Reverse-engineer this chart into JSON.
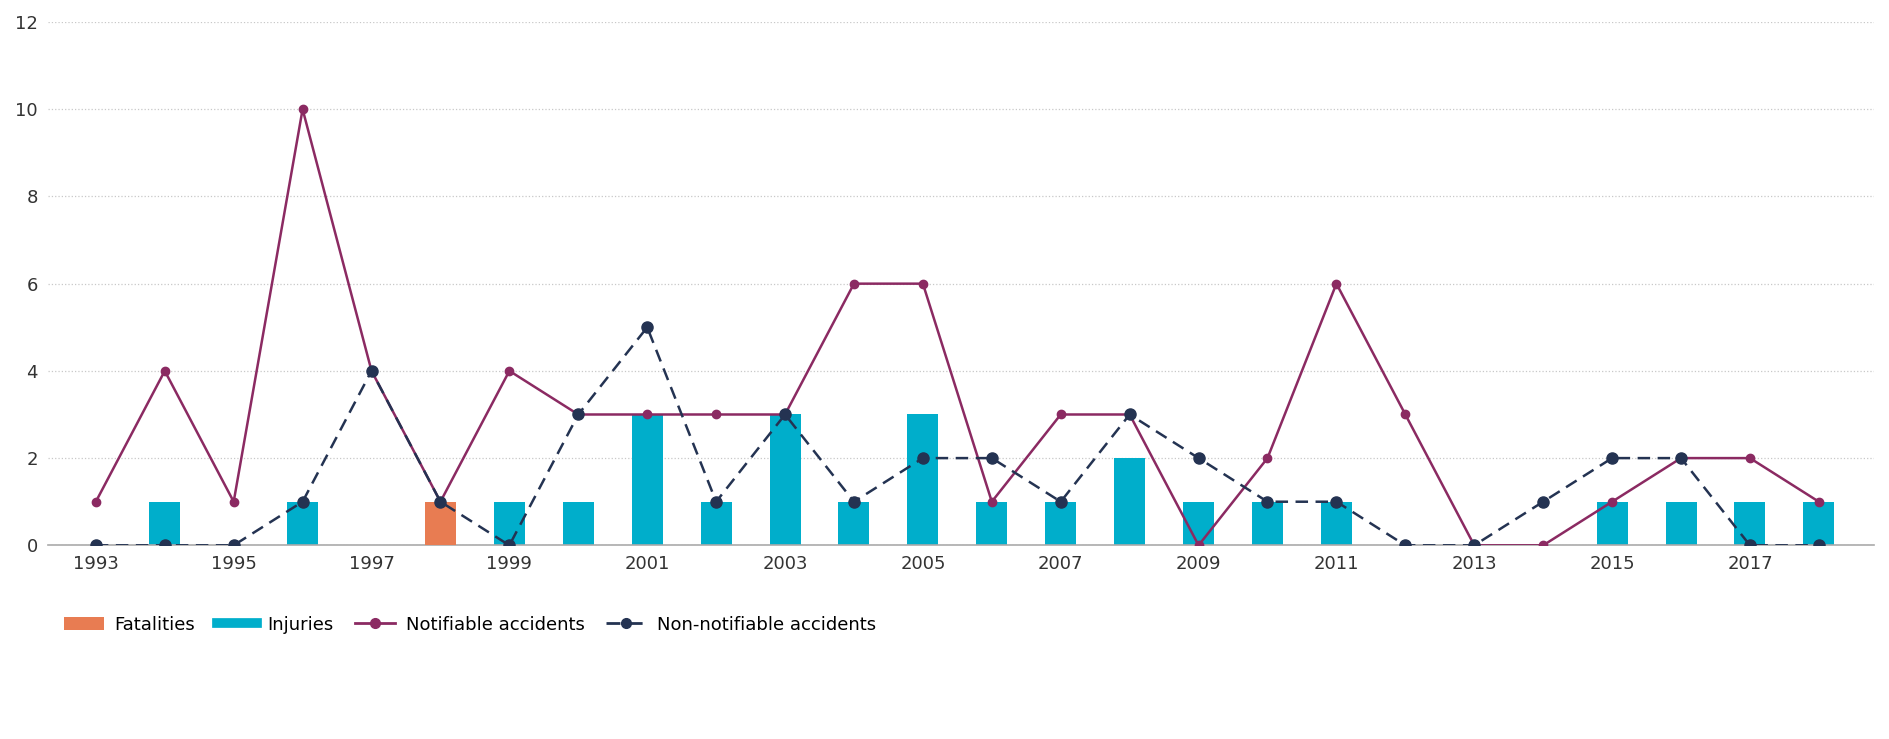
{
  "years": [
    1993,
    1994,
    1995,
    1996,
    1997,
    1998,
    1999,
    2000,
    2001,
    2002,
    2003,
    2004,
    2005,
    2006,
    2007,
    2008,
    2009,
    2010,
    2011,
    2012,
    2013,
    2014,
    2015,
    2016,
    2017,
    2018
  ],
  "fatalities": [
    0,
    0,
    0,
    0,
    0,
    1,
    0,
    0,
    0,
    0,
    0,
    0,
    0,
    0,
    0,
    0,
    0,
    0,
    0,
    0,
    0,
    0,
    0,
    0,
    0,
    0
  ],
  "injuries": [
    0,
    1,
    0,
    1,
    0,
    1,
    1,
    1,
    3,
    1,
    3,
    1,
    3,
    1,
    1,
    2,
    1,
    1,
    1,
    0,
    0,
    0,
    1,
    1,
    1,
    1
  ],
  "notifiable": [
    1,
    4,
    1,
    10,
    4,
    1,
    4,
    3,
    3,
    3,
    3,
    6,
    6,
    1,
    3,
    3,
    0,
    2,
    6,
    3,
    0,
    0,
    1,
    2,
    2,
    1
  ],
  "non_notifiable": [
    0,
    0,
    0,
    1,
    4,
    1,
    0,
    3,
    5,
    1,
    3,
    1,
    2,
    2,
    1,
    3,
    2,
    1,
    1,
    0,
    0,
    1,
    2,
    2,
    0,
    0
  ],
  "fatalities_color": "#E87C52",
  "injuries_color": "#00AECB",
  "notifiable_color": "#8B2A62",
  "non_notifiable_color": "#243352",
  "ylim": [
    0,
    12
  ],
  "yticks": [
    0,
    2,
    4,
    6,
    8,
    10,
    12
  ],
  "xtick_years": [
    1993,
    1995,
    1997,
    1999,
    2001,
    2003,
    2005,
    2007,
    2009,
    2011,
    2013,
    2015,
    2017
  ],
  "background_color": "#ffffff",
  "grid_color": "#c8c8c8"
}
